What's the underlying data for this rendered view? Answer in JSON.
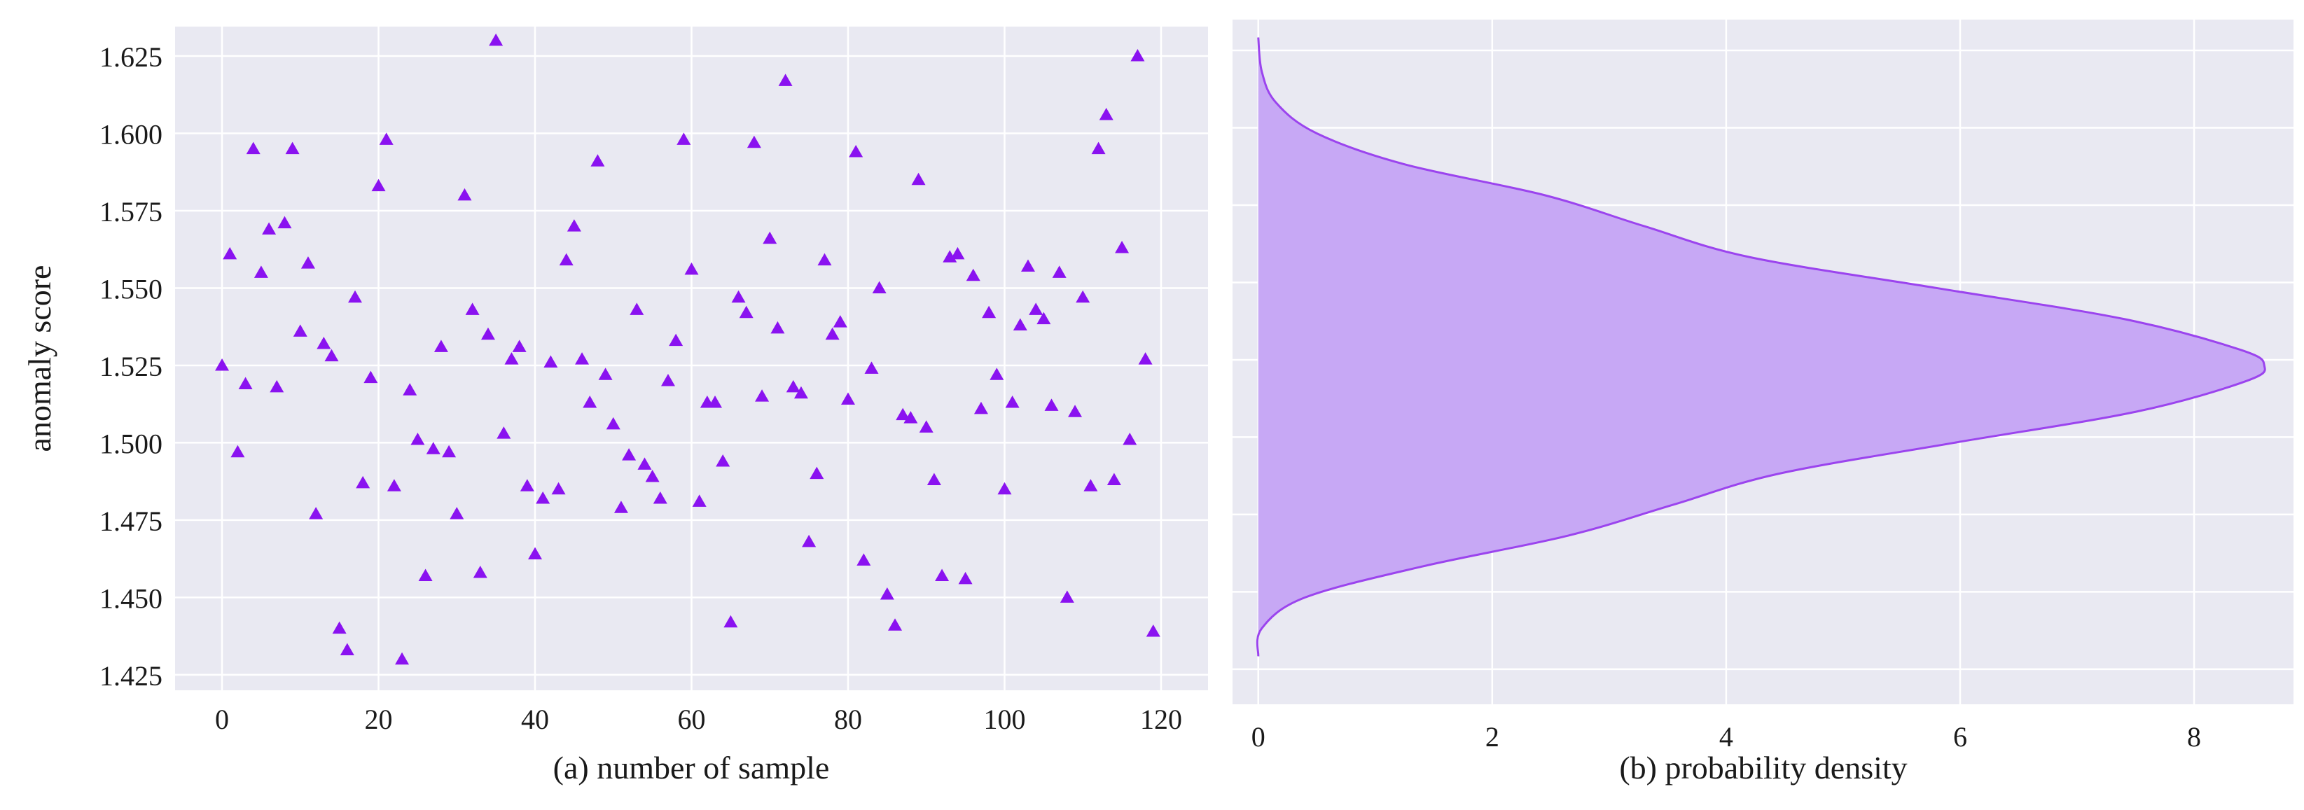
{
  "chart_data": [
    {
      "type": "scatter",
      "title": "",
      "xlabel": "(a) number of sample",
      "ylabel": "anomaly score",
      "xlim": [
        -6,
        126
      ],
      "ylim": [
        1.42,
        1.6345
      ],
      "xticks": [
        0,
        20,
        40,
        60,
        80,
        100,
        120
      ],
      "xtick_labels": [
        "0",
        "20",
        "40",
        "60",
        "80",
        "100",
        "120"
      ],
      "yticks": [
        1.425,
        1.45,
        1.475,
        1.5,
        1.525,
        1.55,
        1.575,
        1.6,
        1.625
      ],
      "ytick_labels": [
        "1.425",
        "1.450",
        "1.475",
        "1.500",
        "1.525",
        "1.550",
        "1.575",
        "1.600",
        "1.625"
      ],
      "grid": true,
      "marker": "triangle",
      "colors": {
        "marker": "#8a12f0",
        "background": "#e9e9f2",
        "grid": "#ffffff"
      },
      "points": [
        {
          "x": 0,
          "y": 1.525
        },
        {
          "x": 1,
          "y": 1.561
        },
        {
          "x": 2,
          "y": 1.497
        },
        {
          "x": 3,
          "y": 1.519
        },
        {
          "x": 4,
          "y": 1.595
        },
        {
          "x": 5,
          "y": 1.555
        },
        {
          "x": 6,
          "y": 1.569
        },
        {
          "x": 7,
          "y": 1.518
        },
        {
          "x": 8,
          "y": 1.571
        },
        {
          "x": 9,
          "y": 1.595
        },
        {
          "x": 10,
          "y": 1.536
        },
        {
          "x": 11,
          "y": 1.558
        },
        {
          "x": 12,
          "y": 1.477
        },
        {
          "x": 13,
          "y": 1.532
        },
        {
          "x": 14,
          "y": 1.528
        },
        {
          "x": 15,
          "y": 1.44
        },
        {
          "x": 16,
          "y": 1.433
        },
        {
          "x": 17,
          "y": 1.547
        },
        {
          "x": 18,
          "y": 1.487
        },
        {
          "x": 19,
          "y": 1.521
        },
        {
          "x": 20,
          "y": 1.583
        },
        {
          "x": 21,
          "y": 1.598
        },
        {
          "x": 22,
          "y": 1.486
        },
        {
          "x": 23,
          "y": 1.43
        },
        {
          "x": 24,
          "y": 1.517
        },
        {
          "x": 25,
          "y": 1.501
        },
        {
          "x": 26,
          "y": 1.457
        },
        {
          "x": 27,
          "y": 1.498
        },
        {
          "x": 28,
          "y": 1.531
        },
        {
          "x": 29,
          "y": 1.497
        },
        {
          "x": 30,
          "y": 1.477
        },
        {
          "x": 31,
          "y": 1.58
        },
        {
          "x": 32,
          "y": 1.543
        },
        {
          "x": 33,
          "y": 1.458
        },
        {
          "x": 34,
          "y": 1.535
        },
        {
          "x": 35,
          "y": 1.63
        },
        {
          "x": 36,
          "y": 1.503
        },
        {
          "x": 37,
          "y": 1.527
        },
        {
          "x": 38,
          "y": 1.531
        },
        {
          "x": 39,
          "y": 1.486
        },
        {
          "x": 40,
          "y": 1.464
        },
        {
          "x": 41,
          "y": 1.482
        },
        {
          "x": 42,
          "y": 1.526
        },
        {
          "x": 43,
          "y": 1.485
        },
        {
          "x": 44,
          "y": 1.559
        },
        {
          "x": 45,
          "y": 1.57
        },
        {
          "x": 46,
          "y": 1.527
        },
        {
          "x": 47,
          "y": 1.513
        },
        {
          "x": 48,
          "y": 1.591
        },
        {
          "x": 49,
          "y": 1.522
        },
        {
          "x": 50,
          "y": 1.506
        },
        {
          "x": 51,
          "y": 1.479
        },
        {
          "x": 52,
          "y": 1.496
        },
        {
          "x": 53,
          "y": 1.543
        },
        {
          "x": 54,
          "y": 1.493
        },
        {
          "x": 55,
          "y": 1.489
        },
        {
          "x": 56,
          "y": 1.482
        },
        {
          "x": 57,
          "y": 1.52
        },
        {
          "x": 58,
          "y": 1.533
        },
        {
          "x": 59,
          "y": 1.598
        },
        {
          "x": 60,
          "y": 1.556
        },
        {
          "x": 61,
          "y": 1.481
        },
        {
          "x": 62,
          "y": 1.513
        },
        {
          "x": 63,
          "y": 1.513
        },
        {
          "x": 64,
          "y": 1.494
        },
        {
          "x": 65,
          "y": 1.442
        },
        {
          "x": 66,
          "y": 1.547
        },
        {
          "x": 67,
          "y": 1.542
        },
        {
          "x": 68,
          "y": 1.597
        },
        {
          "x": 69,
          "y": 1.515
        },
        {
          "x": 70,
          "y": 1.566
        },
        {
          "x": 71,
          "y": 1.537
        },
        {
          "x": 72,
          "y": 1.617
        },
        {
          "x": 73,
          "y": 1.518
        },
        {
          "x": 74,
          "y": 1.516
        },
        {
          "x": 75,
          "y": 1.468
        },
        {
          "x": 76,
          "y": 1.49
        },
        {
          "x": 77,
          "y": 1.559
        },
        {
          "x": 78,
          "y": 1.535
        },
        {
          "x": 79,
          "y": 1.539
        },
        {
          "x": 80,
          "y": 1.514
        },
        {
          "x": 81,
          "y": 1.594
        },
        {
          "x": 82,
          "y": 1.462
        },
        {
          "x": 83,
          "y": 1.524
        },
        {
          "x": 84,
          "y": 1.55
        },
        {
          "x": 85,
          "y": 1.451
        },
        {
          "x": 86,
          "y": 1.441
        },
        {
          "x": 87,
          "y": 1.509
        },
        {
          "x": 88,
          "y": 1.508
        },
        {
          "x": 89,
          "y": 1.585
        },
        {
          "x": 90,
          "y": 1.505
        },
        {
          "x": 91,
          "y": 1.488
        },
        {
          "x": 92,
          "y": 1.457
        },
        {
          "x": 93,
          "y": 1.56
        },
        {
          "x": 94,
          "y": 1.561
        },
        {
          "x": 95,
          "y": 1.456
        },
        {
          "x": 96,
          "y": 1.554
        },
        {
          "x": 97,
          "y": 1.511
        },
        {
          "x": 98,
          "y": 1.542
        },
        {
          "x": 99,
          "y": 1.522
        },
        {
          "x": 100,
          "y": 1.485
        },
        {
          "x": 101,
          "y": 1.513
        },
        {
          "x": 102,
          "y": 1.538
        },
        {
          "x": 103,
          "y": 1.557
        },
        {
          "x": 104,
          "y": 1.543
        },
        {
          "x": 105,
          "y": 1.54
        },
        {
          "x": 106,
          "y": 1.512
        },
        {
          "x": 107,
          "y": 1.555
        },
        {
          "x": 108,
          "y": 1.45
        },
        {
          "x": 109,
          "y": 1.51
        },
        {
          "x": 110,
          "y": 1.547
        },
        {
          "x": 111,
          "y": 1.486
        },
        {
          "x": 112,
          "y": 1.595
        },
        {
          "x": 113,
          "y": 1.606
        },
        {
          "x": 114,
          "y": 1.488
        },
        {
          "x": 115,
          "y": 1.563
        },
        {
          "x": 116,
          "y": 1.501
        },
        {
          "x": 117,
          "y": 1.625
        },
        {
          "x": 118,
          "y": 1.527
        },
        {
          "x": 119,
          "y": 1.439
        }
      ]
    },
    {
      "type": "area",
      "title": "",
      "xlabel": "(b) probability density",
      "ylabel": "",
      "orientation": "horizontal",
      "xlim": [
        -0.22,
        8.85
      ],
      "ylim": [
        1.42,
        1.6345
      ],
      "xticks": [
        0,
        2,
        4,
        6,
        8
      ],
      "xtick_labels": [
        "0",
        "2",
        "4",
        "6",
        "8"
      ],
      "grid": true,
      "colors": {
        "fill": "#c7a8f5",
        "line": "#9b44ee",
        "background": "#e9e9f2",
        "grid": "#ffffff"
      },
      "density_curve": [
        {
          "y": 1.431,
          "x": 0.0
        },
        {
          "y": 1.44,
          "x": 0.03
        },
        {
          "y": 1.45,
          "x": 0.4
        },
        {
          "y": 1.46,
          "x": 1.4
        },
        {
          "y": 1.47,
          "x": 2.65
        },
        {
          "y": 1.48,
          "x": 3.55
        },
        {
          "y": 1.49,
          "x": 4.45
        },
        {
          "y": 1.5,
          "x": 5.95
        },
        {
          "y": 1.51,
          "x": 7.5
        },
        {
          "y": 1.52,
          "x": 8.45
        },
        {
          "y": 1.525,
          "x": 8.6
        },
        {
          "y": 1.53,
          "x": 8.4
        },
        {
          "y": 1.54,
          "x": 7.4
        },
        {
          "y": 1.55,
          "x": 5.8
        },
        {
          "y": 1.56,
          "x": 4.2
        },
        {
          "y": 1.57,
          "x": 3.3
        },
        {
          "y": 1.58,
          "x": 2.45
        },
        {
          "y": 1.59,
          "x": 1.25
        },
        {
          "y": 1.6,
          "x": 0.5
        },
        {
          "y": 1.61,
          "x": 0.15
        },
        {
          "y": 1.62,
          "x": 0.03
        },
        {
          "y": 1.631,
          "x": 0.0
        }
      ]
    }
  ]
}
